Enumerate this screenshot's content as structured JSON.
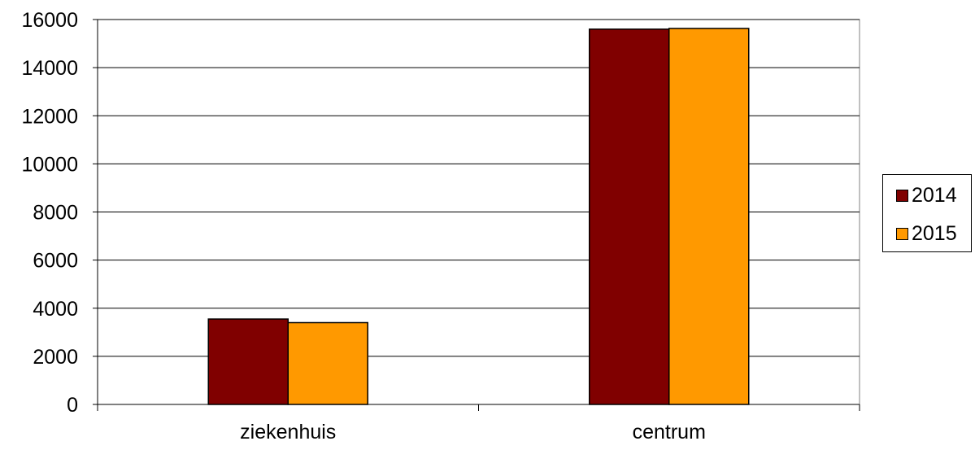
{
  "chart_data": {
    "type": "bar",
    "categories": [
      "ziekenhuis",
      "centrum"
    ],
    "series": [
      {
        "name": "2014",
        "values": [
          3550,
          15600
        ],
        "color": "#800000"
      },
      {
        "name": "2015",
        "values": [
          3400,
          15630
        ],
        "color": "#FF9900"
      }
    ],
    "ylim": [
      0,
      16000
    ],
    "yticks": [
      "0",
      "2000",
      "4000",
      "6000",
      "8000",
      "10000",
      "12000",
      "14000",
      "16000"
    ],
    "grid": true,
    "legend_position": "right"
  }
}
